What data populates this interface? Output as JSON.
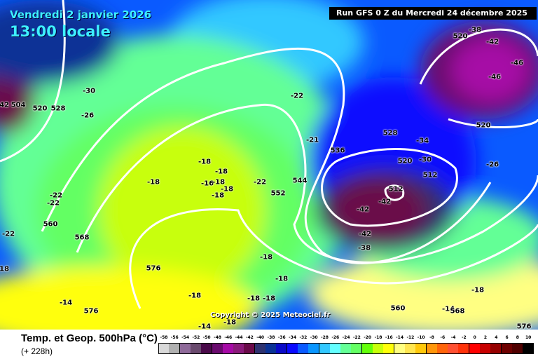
{
  "header": {
    "date": "Vendredi 2 janvier 2026",
    "time": "13:00 locale",
    "run": "Run GFS 0 Z du Mercredi 24 décembre 2025"
  },
  "copyright": "Copyright © 2025 Meteociel.fr",
  "footer": {
    "title": "Temp. et Geop. 500hPa (°C)",
    "step": "(+ 228h)"
  },
  "legend": {
    "ticks": [
      "-58",
      "-56",
      "-54",
      "-52",
      "-50",
      "-48",
      "-46",
      "-44",
      "-42",
      "-40",
      "-38",
      "-36",
      "-34",
      "-32",
      "-30",
      "-28",
      "-26",
      "-24",
      "-22",
      "-20",
      "-18",
      "-16",
      "-14",
      "-12",
      "-10",
      "-8",
      "-6",
      "-4",
      "-2",
      "0",
      "2",
      "4",
      "6",
      "8",
      "10"
    ],
    "colors": [
      "#d9d9d9",
      "#b0b0b0",
      "#8f6a9a",
      "#6a4a6e",
      "#4a0a4a",
      "#6a0a6e",
      "#a60aa6",
      "#8a1a7a",
      "#6a0a4a",
      "#2e3270",
      "#0a3296",
      "#0a0ac8",
      "#0a0aff",
      "#0a5aff",
      "#0a96ff",
      "#32c8ff",
      "#64ffff",
      "#64ff96",
      "#64ff64",
      "#64ff0a",
      "#c8ff0a",
      "#ffff0a",
      "#ffff82",
      "#ffe650",
      "#ffc80a",
      "#ff960a",
      "#ff640a",
      "#ff5032",
      "#ff320a",
      "#ff0000",
      "#c80000",
      "#960000",
      "#6e0000",
      "#500000",
      "#000000"
    ]
  },
  "map_labels": [
    "-30",
    "-26",
    "520",
    "528",
    "504",
    "-42",
    "-22",
    "-21",
    "-18",
    "-18",
    "-18",
    "-16",
    "-18",
    "-18",
    "-18",
    "-22",
    "552",
    "544",
    "536",
    "528",
    "520",
    "-34",
    "-30",
    "512",
    "512",
    "-42",
    "-42",
    "-42",
    "-38",
    "520",
    "-38",
    "-42",
    "-46",
    "-46",
    "520",
    "-26",
    "-22",
    "-22",
    "560",
    "-22",
    "568",
    "576",
    "-18",
    "-18",
    "-18",
    "-18",
    "-18",
    "-18",
    "-18",
    "-14",
    "-14",
    "-14",
    "-18",
    "576",
    "560",
    "568",
    "576"
  ]
}
